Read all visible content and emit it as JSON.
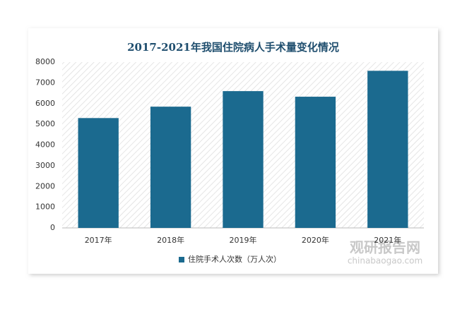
{
  "chart_data": {
    "type": "bar",
    "title": "2017-2021年我国住院病人手术量变化情况",
    "categories": [
      "2017年",
      "2018年",
      "2019年",
      "2020年",
      "2021年"
    ],
    "series": [
      {
        "name": "住院手术人次数（万人次）",
        "color": "#1b6a8f",
        "values": [
          5300,
          5850,
          6600,
          6330,
          7580
        ]
      }
    ],
    "ylim": [
      0,
      8000
    ],
    "yticks": [
      0,
      1000,
      2000,
      3000,
      4000,
      5000,
      6000,
      7000,
      8000
    ],
    "grid": false,
    "legend": "bottom",
    "watermark": [
      "观研报告网",
      "chinabaogao.com"
    ]
  }
}
